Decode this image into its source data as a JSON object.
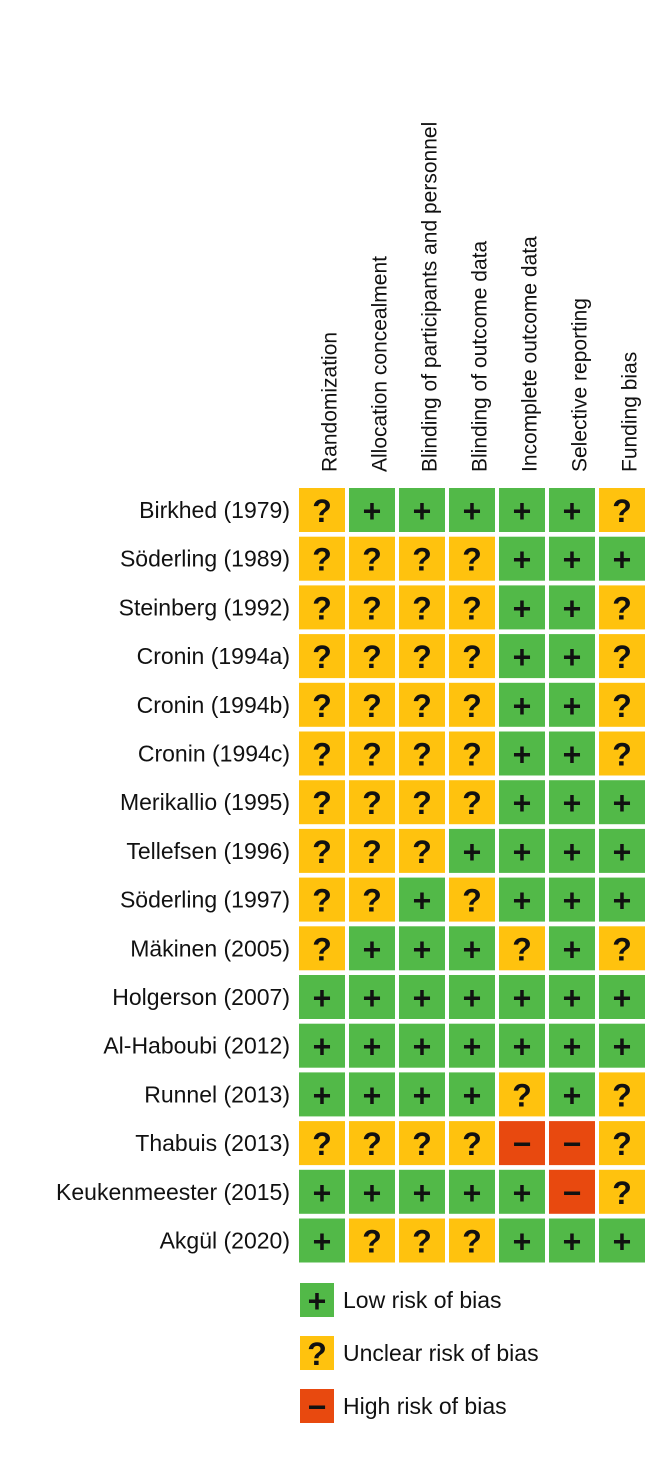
{
  "table": {
    "columns": [
      "Randomization",
      "Allocation concealment",
      "Blinding of participants and personnel",
      "Blinding of outcome data",
      "Incomplete outcome data",
      "Selective reporting",
      "Funding bias"
    ],
    "rows": [
      {
        "label": "Birkhed (1979)",
        "cells": [
          "?",
          "+",
          "+",
          "+",
          "+",
          "+",
          "?"
        ]
      },
      {
        "label": "Söderling (1989)",
        "cells": [
          "?",
          "?",
          "?",
          "?",
          "+",
          "+",
          "+"
        ]
      },
      {
        "label": "Steinberg (1992)",
        "cells": [
          "?",
          "?",
          "?",
          "?",
          "+",
          "+",
          "?"
        ]
      },
      {
        "label": "Cronin (1994a)",
        "cells": [
          "?",
          "?",
          "?",
          "?",
          "+",
          "+",
          "?"
        ]
      },
      {
        "label": "Cronin (1994b)",
        "cells": [
          "?",
          "?",
          "?",
          "?",
          "+",
          "+",
          "?"
        ]
      },
      {
        "label": "Cronin (1994c)",
        "cells": [
          "?",
          "?",
          "?",
          "?",
          "+",
          "+",
          "?"
        ]
      },
      {
        "label": "Merikallio (1995)",
        "cells": [
          "?",
          "?",
          "?",
          "?",
          "+",
          "+",
          "+"
        ]
      },
      {
        "label": "Tellefsen (1996)",
        "cells": [
          "?",
          "?",
          "?",
          "+",
          "+",
          "+",
          "+"
        ]
      },
      {
        "label": "Söderling (1997)",
        "cells": [
          "?",
          "?",
          "+",
          "?",
          "+",
          "+",
          "+"
        ]
      },
      {
        "label": "Mäkinen (2005)",
        "cells": [
          "?",
          "+",
          "+",
          "+",
          "?",
          "+",
          "?"
        ]
      },
      {
        "label": "Holgerson (2007)",
        "cells": [
          "+",
          "+",
          "+",
          "+",
          "+",
          "+",
          "+"
        ]
      },
      {
        "label": "Al-Haboubi (2012)",
        "cells": [
          "+",
          "+",
          "+",
          "+",
          "+",
          "+",
          "+"
        ]
      },
      {
        "label": "Runnel (2013)",
        "cells": [
          "+",
          "+",
          "+",
          "+",
          "?",
          "+",
          "?"
        ]
      },
      {
        "label": "Thabuis (2013)",
        "cells": [
          "?",
          "?",
          "?",
          "?",
          "−",
          "−",
          "?"
        ]
      },
      {
        "label": "Keukenmeester (2015)",
        "cells": [
          "+",
          "+",
          "+",
          "+",
          "+",
          "−",
          "?"
        ]
      },
      {
        "label": "Akgül (2020)",
        "cells": [
          "+",
          "?",
          "?",
          "?",
          "+",
          "+",
          "+"
        ]
      }
    ]
  },
  "legend": [
    {
      "symbol": "+",
      "label": "Low risk of bias",
      "color": "#52b948"
    },
    {
      "symbol": "?",
      "label": "Unclear risk of bias",
      "color": "#ffc20e"
    },
    {
      "symbol": "−",
      "label": "High risk of bias",
      "color": "#e8490f"
    }
  ]
}
